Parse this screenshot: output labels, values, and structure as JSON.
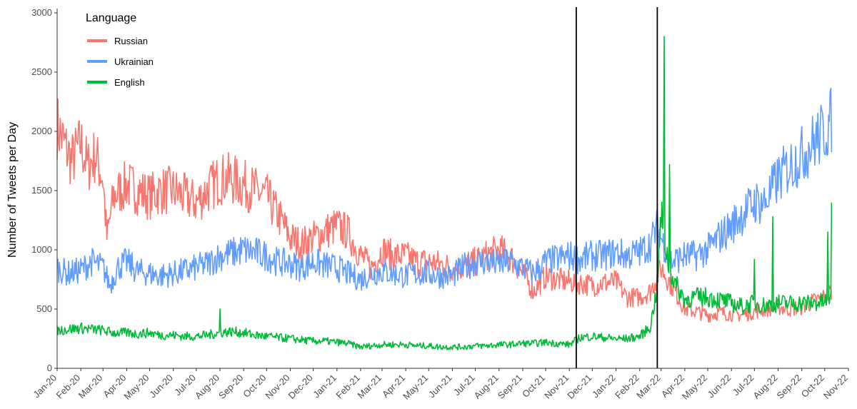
{
  "chart_data": {
    "type": "line",
    "title": "",
    "xlabel": "",
    "ylabel": "Number of Tweets per Day",
    "ylim": [
      0,
      3000
    ],
    "xlim": [
      "2020-01-01",
      "2022-11-01"
    ],
    "y_ticks": [
      0,
      500,
      1000,
      1500,
      2000,
      2500,
      3000
    ],
    "x_tick_labels": [
      "Jan-20",
      "Feb-20",
      "Mar-20",
      "Apr-20",
      "May-20",
      "Jun-20",
      "Jul-20",
      "Aug-20",
      "Sep-20",
      "Oct-20",
      "Nov-20",
      "Dec-20",
      "Jan-21",
      "Feb-21",
      "Mar-21",
      "Apr-21",
      "May-21",
      "Jun-21",
      "Jul-21",
      "Aug-21",
      "Sep-21",
      "Oct-21",
      "Nov-21",
      "Dec-21",
      "Jan-22",
      "Feb-22",
      "Mar-22",
      "Apr-22",
      "May-22",
      "Jun-22",
      "Jul-22",
      "Aug-22",
      "Sep-22",
      "Oct-22",
      "Nov-22"
    ],
    "grid": false,
    "legend": {
      "title": "Language",
      "position": "top-left"
    },
    "vertical_lines": [
      "2021-11-10",
      "2022-02-24"
    ],
    "series": [
      {
        "name": "Russian",
        "color": "#F8766D",
        "points": [
          [
            "2020-01-01",
            2050
          ],
          [
            "2020-01-10",
            1900
          ],
          [
            "2020-01-20",
            1750
          ],
          [
            "2020-02-01",
            1900
          ],
          [
            "2020-02-10",
            1700
          ],
          [
            "2020-02-20",
            1800
          ],
          [
            "2020-03-01",
            1600
          ],
          [
            "2020-03-06",
            1100
          ],
          [
            "2020-03-15",
            1450
          ],
          [
            "2020-04-01",
            1550
          ],
          [
            "2020-04-15",
            1500
          ],
          [
            "2020-05-01",
            1450
          ],
          [
            "2020-05-15",
            1500
          ],
          [
            "2020-06-01",
            1500
          ],
          [
            "2020-06-15",
            1450
          ],
          [
            "2020-07-01",
            1400
          ],
          [
            "2020-07-15",
            1500
          ],
          [
            "2020-08-01",
            1600
          ],
          [
            "2020-08-15",
            1600
          ],
          [
            "2020-09-01",
            1550
          ],
          [
            "2020-09-15",
            1500
          ],
          [
            "2020-10-01",
            1450
          ],
          [
            "2020-10-20",
            1250
          ],
          [
            "2020-11-01",
            1100
          ],
          [
            "2020-11-15",
            1050
          ],
          [
            "2020-12-01",
            1100
          ],
          [
            "2020-12-15",
            1150
          ],
          [
            "2021-01-01",
            1200
          ],
          [
            "2021-01-15",
            1150
          ],
          [
            "2021-02-01",
            950
          ],
          [
            "2021-02-15",
            850
          ],
          [
            "2021-03-01",
            1000
          ],
          [
            "2021-03-15",
            950
          ],
          [
            "2021-04-01",
            950
          ],
          [
            "2021-04-15",
            900
          ],
          [
            "2021-05-01",
            900
          ],
          [
            "2021-05-15",
            880
          ],
          [
            "2021-06-01",
            850
          ],
          [
            "2021-06-15",
            850
          ],
          [
            "2021-07-01",
            900
          ],
          [
            "2021-07-15",
            950
          ],
          [
            "2021-08-01",
            1000
          ],
          [
            "2021-08-15",
            950
          ],
          [
            "2021-09-01",
            800
          ],
          [
            "2021-09-15",
            650
          ],
          [
            "2021-10-01",
            780
          ],
          [
            "2021-10-15",
            750
          ],
          [
            "2021-11-01",
            730
          ],
          [
            "2021-11-15",
            720
          ],
          [
            "2021-12-01",
            700
          ],
          [
            "2021-12-15",
            720
          ],
          [
            "2022-01-01",
            730
          ],
          [
            "2022-01-15",
            600
          ],
          [
            "2022-02-01",
            600
          ],
          [
            "2022-02-15",
            650
          ],
          [
            "2022-02-24",
            780
          ],
          [
            "2022-03-01",
            850
          ],
          [
            "2022-03-15",
            700
          ],
          [
            "2022-04-01",
            500
          ],
          [
            "2022-04-15",
            480
          ],
          [
            "2022-05-01",
            450
          ],
          [
            "2022-05-15",
            470
          ],
          [
            "2022-06-01",
            460
          ],
          [
            "2022-06-15",
            450
          ],
          [
            "2022-07-01",
            480
          ],
          [
            "2022-07-15",
            500
          ],
          [
            "2022-08-01",
            520
          ],
          [
            "2022-08-15",
            500
          ],
          [
            "2022-09-01",
            520
          ],
          [
            "2022-09-15",
            560
          ],
          [
            "2022-10-01",
            600
          ],
          [
            "2022-10-10",
            650
          ]
        ]
      },
      {
        "name": "Ukrainian",
        "color": "#619CFF",
        "points": [
          [
            "2020-01-01",
            850
          ],
          [
            "2020-01-15",
            800
          ],
          [
            "2020-02-01",
            830
          ],
          [
            "2020-02-15",
            900
          ],
          [
            "2020-03-01",
            850
          ],
          [
            "2020-03-10",
            700
          ],
          [
            "2020-03-20",
            850
          ],
          [
            "2020-04-01",
            900
          ],
          [
            "2020-04-15",
            820
          ],
          [
            "2020-05-01",
            800
          ],
          [
            "2020-05-15",
            780
          ],
          [
            "2020-06-01",
            800
          ],
          [
            "2020-06-15",
            820
          ],
          [
            "2020-07-01",
            850
          ],
          [
            "2020-07-15",
            880
          ],
          [
            "2020-08-01",
            950
          ],
          [
            "2020-08-15",
            970
          ],
          [
            "2020-09-01",
            1000
          ],
          [
            "2020-09-15",
            980
          ],
          [
            "2020-10-01",
            950
          ],
          [
            "2020-10-15",
            900
          ],
          [
            "2020-11-01",
            880
          ],
          [
            "2020-11-15",
            850
          ],
          [
            "2020-12-01",
            900
          ],
          [
            "2020-12-15",
            870
          ],
          [
            "2021-01-01",
            850
          ],
          [
            "2021-01-15",
            800
          ],
          [
            "2021-02-01",
            750
          ],
          [
            "2021-02-15",
            800
          ],
          [
            "2021-03-01",
            820
          ],
          [
            "2021-03-15",
            800
          ],
          [
            "2021-04-01",
            780
          ],
          [
            "2021-04-15",
            800
          ],
          [
            "2021-05-01",
            800
          ],
          [
            "2021-05-15",
            780
          ],
          [
            "2021-06-01",
            780
          ],
          [
            "2021-06-15",
            850
          ],
          [
            "2021-07-01",
            900
          ],
          [
            "2021-07-15",
            900
          ],
          [
            "2021-08-01",
            880
          ],
          [
            "2021-08-15",
            900
          ],
          [
            "2021-09-01",
            850
          ],
          [
            "2021-09-15",
            800
          ],
          [
            "2021-10-01",
            900
          ],
          [
            "2021-10-15",
            920
          ],
          [
            "2021-11-01",
            950
          ],
          [
            "2021-11-15",
            920
          ],
          [
            "2021-12-01",
            950
          ],
          [
            "2021-12-15",
            950
          ],
          [
            "2022-01-01",
            980
          ],
          [
            "2022-01-15",
            950
          ],
          [
            "2022-02-01",
            980
          ],
          [
            "2022-02-15",
            1050
          ],
          [
            "2022-02-24",
            1200
          ],
          [
            "2022-03-01",
            1100
          ],
          [
            "2022-03-15",
            900
          ],
          [
            "2022-04-01",
            950
          ],
          [
            "2022-04-15",
            950
          ],
          [
            "2022-05-01",
            1000
          ],
          [
            "2022-05-15",
            1100
          ],
          [
            "2022-06-01",
            1200
          ],
          [
            "2022-06-15",
            1300
          ],
          [
            "2022-07-01",
            1400
          ],
          [
            "2022-07-15",
            1400
          ],
          [
            "2022-08-01",
            1600
          ],
          [
            "2022-08-15",
            1700
          ],
          [
            "2022-09-01",
            1800
          ],
          [
            "2022-09-15",
            1900
          ],
          [
            "2022-10-01",
            2000
          ],
          [
            "2022-10-10",
            2100
          ]
        ]
      },
      {
        "name": "English",
        "color": "#00BA38",
        "points": [
          [
            "2020-01-01",
            320
          ],
          [
            "2020-01-15",
            330
          ],
          [
            "2020-02-01",
            340
          ],
          [
            "2020-02-15",
            330
          ],
          [
            "2020-03-01",
            320
          ],
          [
            "2020-03-15",
            300
          ],
          [
            "2020-04-01",
            300
          ],
          [
            "2020-04-15",
            290
          ],
          [
            "2020-05-01",
            300
          ],
          [
            "2020-05-15",
            280
          ],
          [
            "2020-06-01",
            280
          ],
          [
            "2020-06-15",
            270
          ],
          [
            "2020-07-01",
            270
          ],
          [
            "2020-07-15",
            280
          ],
          [
            "2020-08-01",
            300
          ],
          [
            "2020-08-15",
            310
          ],
          [
            "2020-09-01",
            300
          ],
          [
            "2020-09-15",
            280
          ],
          [
            "2020-10-01",
            270
          ],
          [
            "2020-10-15",
            260
          ],
          [
            "2020-11-01",
            250
          ],
          [
            "2020-11-15",
            240
          ],
          [
            "2020-12-01",
            230
          ],
          [
            "2020-12-15",
            230
          ],
          [
            "2021-01-01",
            220
          ],
          [
            "2021-01-15",
            210
          ],
          [
            "2021-02-01",
            180
          ],
          [
            "2021-02-15",
            190
          ],
          [
            "2021-03-01",
            200
          ],
          [
            "2021-03-15",
            200
          ],
          [
            "2021-04-01",
            200
          ],
          [
            "2021-04-15",
            190
          ],
          [
            "2021-05-01",
            190
          ],
          [
            "2021-05-15",
            180
          ],
          [
            "2021-06-01",
            180
          ],
          [
            "2021-06-15",
            180
          ],
          [
            "2021-07-01",
            190
          ],
          [
            "2021-07-15",
            190
          ],
          [
            "2021-08-01",
            200
          ],
          [
            "2021-08-15",
            200
          ],
          [
            "2021-09-01",
            210
          ],
          [
            "2021-09-15",
            210
          ],
          [
            "2021-10-01",
            220
          ],
          [
            "2021-10-15",
            210
          ],
          [
            "2021-11-01",
            200
          ],
          [
            "2021-11-15",
            260
          ],
          [
            "2021-12-01",
            270
          ],
          [
            "2021-12-15",
            260
          ],
          [
            "2022-01-01",
            250
          ],
          [
            "2022-01-15",
            250
          ],
          [
            "2022-02-01",
            270
          ],
          [
            "2022-02-15",
            350
          ],
          [
            "2022-02-24",
            700
          ],
          [
            "2022-03-01",
            1300
          ],
          [
            "2022-03-10",
            900
          ],
          [
            "2022-03-20",
            700
          ],
          [
            "2022-04-01",
            580
          ],
          [
            "2022-04-15",
            600
          ],
          [
            "2022-05-01",
            600
          ],
          [
            "2022-05-15",
            580
          ],
          [
            "2022-06-01",
            550
          ],
          [
            "2022-06-15",
            520
          ],
          [
            "2022-07-01",
            550
          ],
          [
            "2022-07-15",
            530
          ],
          [
            "2022-08-01",
            550
          ],
          [
            "2022-08-15",
            550
          ],
          [
            "2022-09-01",
            550
          ],
          [
            "2022-09-15",
            550
          ],
          [
            "2022-10-01",
            560
          ],
          [
            "2022-10-10",
            600
          ]
        ],
        "spikes": [
          [
            "2020-08-01",
            500
          ],
          [
            "2022-03-05",
            2800
          ],
          [
            "2022-03-12",
            1720
          ],
          [
            "2022-07-01",
            920
          ],
          [
            "2022-07-25",
            1280
          ],
          [
            "2022-10-05",
            1150
          ],
          [
            "2022-10-10",
            1400
          ]
        ]
      }
    ]
  }
}
